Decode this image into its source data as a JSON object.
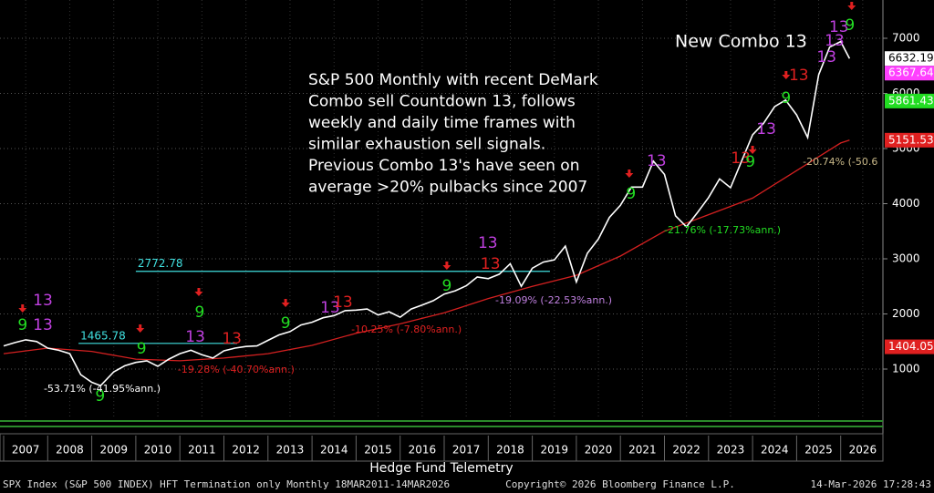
{
  "chart_data": {
    "type": "line",
    "note_lines": [
      "S&P 500 Monthly with recent DeMark",
      "Combo sell Countdown 13, follows",
      "weekly and daily time frames with",
      "similar exhaustion sell signals.",
      "Previous Combo 13's have seen on",
      "average >20% pulbacks since 2007"
    ],
    "headline": "New Combo 13",
    "caption": "Hedge Fund Telemetry",
    "footer_left": "SPX Index (S&P 500 INDEX) HFT Termination only Monthly 18MAR2011-14MAR2026",
    "footer_center": "Copyright© 2026 Bloomberg Finance L.P.",
    "footer_right": "14-Mar-2026 17:28:43",
    "xlim": [
      2007,
      2027
    ],
    "ylim": [
      91,
      7694
    ],
    "xticks": [
      {
        "value": 2007.5,
        "label": "2007"
      },
      {
        "value": 2008.5,
        "label": "2008"
      },
      {
        "value": 2009.5,
        "label": "2009"
      },
      {
        "value": 2010.5,
        "label": "2010"
      },
      {
        "value": 2011.5,
        "label": "2011"
      },
      {
        "value": 2012.5,
        "label": "2012"
      },
      {
        "value": 2013.5,
        "label": "2013"
      },
      {
        "value": 2014.5,
        "label": "2014"
      },
      {
        "value": 2015.5,
        "label": "2015"
      },
      {
        "value": 2016.5,
        "label": "2016"
      },
      {
        "value": 2017.5,
        "label": "2017"
      },
      {
        "value": 2018.5,
        "label": "2018"
      },
      {
        "value": 2019.5,
        "label": "2019"
      },
      {
        "value": 2020.5,
        "label": "2020"
      },
      {
        "value": 2021.5,
        "label": "2021"
      },
      {
        "value": 2022.5,
        "label": "2022"
      },
      {
        "value": 2023.5,
        "label": "2023"
      },
      {
        "value": 2024.5,
        "label": "2024"
      },
      {
        "value": 2025.5,
        "label": "2025"
      },
      {
        "value": 2026.5,
        "label": "2026"
      }
    ],
    "yticks": [
      1000,
      2000,
      3000,
      4000,
      5000,
      6000,
      7000
    ],
    "grid": true,
    "series": [
      {
        "name": "SPX",
        "color": "#ffffff",
        "x": [
          2007.0,
          2007.25,
          2007.5,
          2007.75,
          2008.0,
          2008.25,
          2008.5,
          2008.75,
          2009.0,
          2009.2,
          2009.5,
          2009.75,
          2010.0,
          2010.25,
          2010.5,
          2010.75,
          2011.0,
          2011.25,
          2011.5,
          2011.75,
          2012.0,
          2012.25,
          2012.5,
          2012.75,
          2013.0,
          2013.25,
          2013.5,
          2013.75,
          2014.0,
          2014.25,
          2014.5,
          2014.75,
          2015.0,
          2015.25,
          2015.5,
          2015.75,
          2016.0,
          2016.25,
          2016.5,
          2016.75,
          2017.0,
          2017.25,
          2017.5,
          2017.75,
          2018.0,
          2018.25,
          2018.5,
          2018.75,
          2019.0,
          2019.25,
          2019.5,
          2019.75,
          2020.0,
          2020.25,
          2020.5,
          2020.75,
          2021.0,
          2021.25,
          2021.5,
          2021.75,
          2022.0,
          2022.25,
          2022.5,
          2022.75,
          2023.0,
          2023.25,
          2023.5,
          2023.75,
          2024.0,
          2024.25,
          2024.5,
          2024.75,
          2025.0,
          2025.25,
          2025.5,
          2025.75,
          2026.0,
          2026.2
        ],
        "values": [
          1420,
          1480,
          1530,
          1500,
          1380,
          1340,
          1280,
          900,
          760,
          700,
          950,
          1060,
          1120,
          1150,
          1050,
          1180,
          1280,
          1340,
          1260,
          1200,
          1330,
          1380,
          1410,
          1420,
          1520,
          1620,
          1680,
          1800,
          1850,
          1930,
          1970,
          2060,
          2070,
          2090,
          1980,
          2040,
          1940,
          2090,
          2160,
          2240,
          2360,
          2420,
          2510,
          2670,
          2640,
          2720,
          2910,
          2500,
          2830,
          2940,
          2980,
          3230,
          2580,
          3100,
          3360,
          3750,
          3970,
          4300,
          4300,
          4770,
          4530,
          3780,
          3580,
          3840,
          4110,
          4450,
          4290,
          4770,
          5250,
          5460,
          5760,
          5880,
          5610,
          5200,
          6340,
          6840,
          6940,
          6632.19
        ]
      },
      {
        "name": "MA",
        "color": "#d42020",
        "x": [
          2007.0,
          2008.0,
          2009.0,
          2010.0,
          2011.0,
          2012.0,
          2013.0,
          2014.0,
          2015.0,
          2016.0,
          2017.0,
          2018.0,
          2019.0,
          2020.0,
          2021.0,
          2022.0,
          2023.0,
          2024.0,
          2025.0,
          2026.0,
          2026.2
        ],
        "values": [
          1280,
          1380,
          1320,
          1180,
          1150,
          1200,
          1280,
          1430,
          1650,
          1820,
          2020,
          2280,
          2500,
          2700,
          3050,
          3500,
          3800,
          4100,
          4600,
          5100,
          5151.53
        ]
      }
    ],
    "price_tags": [
      {
        "value": 6632.19,
        "color": "#ffffff"
      },
      {
        "value": 6367.64,
        "color": "#ff40ff"
      },
      {
        "value": 5861.43,
        "color": "#22dd22"
      },
      {
        "value": 5151.53,
        "color": "#e02020"
      },
      {
        "value": 1404.05,
        "color": "#e02020"
      }
    ],
    "levels": [
      {
        "value": 2772.78,
        "x": [
          2010.0,
          2019.4
        ],
        "color": "#40e0e0"
      },
      {
        "value": 1465.78,
        "x": [
          2008.7,
          2012.3
        ],
        "color": "#40e0e0"
      }
    ],
    "signals": [
      {
        "x": 2007.43,
        "y": 1793,
        "label": "9",
        "color": "#22dd22"
      },
      {
        "x": 2007.89,
        "y": 2240,
        "label": "13",
        "color": "#c040e0"
      },
      {
        "x": 2007.89,
        "y": 1793,
        "label": "13",
        "color": "#c040e0"
      },
      {
        "x": 2010.13,
        "y": 1364,
        "label": "9",
        "color": "#22dd22"
      },
      {
        "x": 2011.45,
        "y": 2025,
        "label": "9",
        "color": "#22dd22"
      },
      {
        "x": 2011.35,
        "y": 1579,
        "label": "13",
        "color": "#c040e0"
      },
      {
        "x": 2012.18,
        "y": 1545,
        "label": "13",
        "color": "#e02020"
      },
      {
        "x": 2013.4,
        "y": 1826,
        "label": "9",
        "color": "#22dd22"
      },
      {
        "x": 2014.41,
        "y": 2107,
        "label": "13",
        "color": "#c040e0"
      },
      {
        "x": 2014.7,
        "y": 2207,
        "label": "13",
        "color": "#e02020"
      },
      {
        "x": 2017.06,
        "y": 2504,
        "label": "9",
        "color": "#22dd22"
      },
      {
        "x": 2017.99,
        "y": 3281,
        "label": "13",
        "color": "#c040e0"
      },
      {
        "x": 2018.05,
        "y": 2901,
        "label": "13",
        "color": "#e02020"
      },
      {
        "x": 2021.24,
        "y": 4174,
        "label": "9",
        "color": "#22dd22"
      },
      {
        "x": 2021.82,
        "y": 4769,
        "label": "13",
        "color": "#c040e0"
      },
      {
        "x": 2023.73,
        "y": 4818,
        "label": "13",
        "color": "#e02020"
      },
      {
        "x": 2023.95,
        "y": 4752,
        "label": "9",
        "color": "#22dd22"
      },
      {
        "x": 2024.31,
        "y": 5347,
        "label": "13",
        "color": "#c040e0"
      },
      {
        "x": 2024.76,
        "y": 5909,
        "label": "9",
        "color": "#22dd22"
      },
      {
        "x": 2025.05,
        "y": 6322,
        "label": "13",
        "color": "#e02020"
      },
      {
        "x": 2025.68,
        "y": 6653,
        "label": "13",
        "color": "#c040e0"
      },
      {
        "x": 2025.86,
        "y": 6950,
        "label": "13",
        "color": "#c040e0"
      },
      {
        "x": 2025.96,
        "y": 7198,
        "label": "13",
        "color": "#c040e0"
      },
      {
        "x": 2026.21,
        "y": 7231,
        "label": "9",
        "color": "#22dd22"
      },
      {
        "x": 2009.19,
        "y": 504,
        "label": "9",
        "color": "#22dd22"
      }
    ],
    "sell_arrows": [
      {
        "x": 2007.43,
        "y": 2074
      },
      {
        "x": 2010.1,
        "y": 1711
      },
      {
        "x": 2011.43,
        "y": 2372
      },
      {
        "x": 2013.4,
        "y": 2174
      },
      {
        "x": 2017.06,
        "y": 2851
      },
      {
        "x": 2021.2,
        "y": 4521
      },
      {
        "x": 2024.0,
        "y": 4950
      },
      {
        "x": 2024.76,
        "y": 6306
      },
      {
        "x": 2026.25,
        "y": 7562
      }
    ],
    "pullbacks": [
      {
        "x": 2007.91,
        "y": 636,
        "label": "-53.71% (-41.95%ann.)",
        "color": "#ffffff"
      },
      {
        "x": 2010.95,
        "y": 983,
        "label": "-19.28% (-40.70%ann.)",
        "color": "#e02020"
      },
      {
        "x": 2014.89,
        "y": 1711,
        "label": "-10.25% (-7.80%ann.)",
        "color": "#e02020"
      },
      {
        "x": 2018.16,
        "y": 2240,
        "label": "-19.09% (-22.53%ann.)",
        "color": "#c080e0"
      },
      {
        "x": 2021.99,
        "y": 3512,
        "label": "-21.76% (-17.73%ann.)",
        "color": "#22dd22"
      },
      {
        "x": 2025.14,
        "y": 4752,
        "label": "-20.74% (-50.6",
        "color": "#c8b888"
      }
    ]
  }
}
